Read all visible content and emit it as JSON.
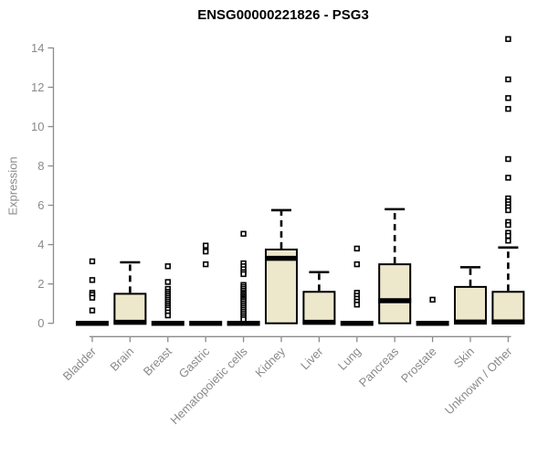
{
  "chart_data": {
    "type": "boxplot",
    "title": "ENSG00000221826 - PSG3",
    "ylabel": "Expression",
    "ylim": [
      0,
      14.5
    ],
    "yticks": [
      0,
      2,
      4,
      6,
      8,
      10,
      12,
      14
    ],
    "grid": false,
    "legend": "none",
    "colors": {
      "box_fill": "#EDE8CB",
      "box_stroke": "#000000",
      "axis": "#8B8B8B",
      "label_text": "#8A8A8A",
      "title_text": "#000000",
      "outlier_fill": "#FFFFFF"
    },
    "categories": [
      "Bladder",
      "Brain",
      "Breast",
      "Gastric",
      "Hematopoietic cells",
      "Kidney",
      "Liver",
      "Lung",
      "Pancreas",
      "Prostate",
      "Skin",
      "Unknown / Other"
    ],
    "series": [
      {
        "label": "Bladder",
        "q1": 0,
        "median": 0,
        "q3": 0,
        "whisker_low": 0,
        "whisker_high": 0,
        "outliers": [
          3.15,
          2.2,
          1.55,
          1.45,
          1.3,
          0.65
        ]
      },
      {
        "label": "Brain",
        "q1": 0,
        "median": 0.05,
        "q3": 1.5,
        "whisker_low": 0,
        "whisker_high": 3.1,
        "outliers": []
      },
      {
        "label": "Breast",
        "q1": 0,
        "median": 0,
        "q3": 0,
        "whisker_low": 0,
        "whisker_high": 0,
        "outliers": [
          2.9,
          2.1,
          1.75,
          1.6,
          1.5,
          1.4,
          1.3,
          1.2,
          1.1,
          1.0,
          0.9,
          0.8,
          0.7,
          0.55,
          0.4
        ]
      },
      {
        "label": "Gastric",
        "q1": 0,
        "median": 0,
        "q3": 0,
        "whisker_low": 0,
        "whisker_high": 0,
        "outliers": [
          3.95,
          3.65,
          3.0
        ]
      },
      {
        "label": "Hematopoietic cells",
        "q1": 0,
        "median": 0,
        "q3": 0,
        "whisker_low": 0,
        "whisker_high": 0,
        "outliers": [
          4.55,
          3.05,
          2.9,
          2.75,
          2.6,
          2.5,
          1.95,
          1.85,
          1.75,
          1.65,
          1.55,
          1.48,
          1.4,
          1.32,
          1.25,
          1.18,
          1.1,
          1.0,
          0.9,
          0.8,
          0.7,
          0.6,
          0.5,
          0.4,
          0.3,
          0.2
        ]
      },
      {
        "label": "Kidney",
        "q1": 0,
        "median": 3.3,
        "q3": 3.75,
        "whisker_low": 0,
        "whisker_high": 5.75,
        "outliers": []
      },
      {
        "label": "Liver",
        "q1": 0,
        "median": 0.05,
        "q3": 1.6,
        "whisker_low": 0,
        "whisker_high": 2.6,
        "outliers": []
      },
      {
        "label": "Lung",
        "q1": 0,
        "median": 0,
        "q3": 0,
        "whisker_low": 0,
        "whisker_high": 0,
        "outliers": [
          3.8,
          3.0,
          1.55,
          1.4,
          1.25,
          1.1,
          0.95
        ]
      },
      {
        "label": "Pancreas",
        "q1": 0,
        "median": 1.15,
        "q3": 3.0,
        "whisker_low": 0,
        "whisker_high": 5.8,
        "outliers": []
      },
      {
        "label": "Prostate",
        "q1": 0,
        "median": 0,
        "q3": 0,
        "whisker_low": 0,
        "whisker_high": 0,
        "outliers": [
          1.2
        ]
      },
      {
        "label": "Skin",
        "q1": 0,
        "median": 0.06,
        "q3": 1.85,
        "whisker_low": 0,
        "whisker_high": 2.85,
        "outliers": []
      },
      {
        "label": "Unknown / Other",
        "q1": 0,
        "median": 0.07,
        "q3": 1.6,
        "whisker_low": 0,
        "whisker_high": 3.85,
        "outliers": [
          14.45,
          12.4,
          11.45,
          10.9,
          8.35,
          7.4,
          6.35,
          6.2,
          6.05,
          5.9,
          5.75,
          5.15,
          5.0,
          4.6,
          4.45,
          4.2
        ]
      }
    ]
  }
}
